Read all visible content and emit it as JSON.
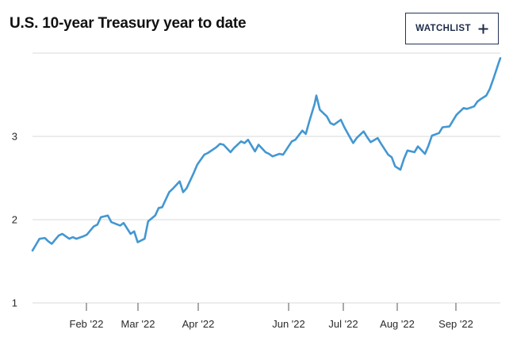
{
  "header": {
    "title": "U.S. 10-year Treasury year to date",
    "watchlist_label": "WATCHLIST",
    "watchlist_icon": "plus-icon"
  },
  "colors": {
    "line": "#4397d2",
    "grid": "#d9d9d9",
    "axis": "#555555",
    "button_border": "#243558",
    "button_text": "#1d2b4a"
  },
  "chart_data": {
    "type": "line",
    "title": "U.S. 10-year Treasury year to date",
    "xlabel": "",
    "ylabel": "",
    "ylim": [
      1,
      4
    ],
    "yticks": [
      1,
      2,
      3
    ],
    "xticks": [
      "Feb '22",
      "Mar '22",
      "Apr '22",
      "Jun '22",
      "Jul '22",
      "Aug '22",
      "Sep '22"
    ],
    "grid": true,
    "legend": "none",
    "series": [
      {
        "name": "",
        "x": [
          "2022-01-03",
          "2022-01-05",
          "2022-01-07",
          "2022-01-10",
          "2022-01-12",
          "2022-01-14",
          "2022-01-18",
          "2022-01-20",
          "2022-01-24",
          "2022-01-26",
          "2022-01-28",
          "2022-02-01",
          "2022-02-03",
          "2022-02-07",
          "2022-02-09",
          "2022-02-11",
          "2022-02-15",
          "2022-02-17",
          "2022-02-22",
          "2022-02-24",
          "2022-02-28",
          "2022-03-02",
          "2022-03-04",
          "2022-03-08",
          "2022-03-10",
          "2022-03-14",
          "2022-03-16",
          "2022-03-18",
          "2022-03-22",
          "2022-03-24",
          "2022-03-28",
          "2022-03-30",
          "2022-04-01",
          "2022-04-05",
          "2022-04-07",
          "2022-04-11",
          "2022-04-13",
          "2022-04-18",
          "2022-04-20",
          "2022-04-22",
          "2022-04-26",
          "2022-04-28",
          "2022-05-02",
          "2022-05-04",
          "2022-05-06",
          "2022-05-10",
          "2022-05-12",
          "2022-05-16",
          "2022-05-18",
          "2022-05-20",
          "2022-05-24",
          "2022-05-26",
          "2022-05-31",
          "2022-06-02",
          "2022-06-06",
          "2022-06-08",
          "2022-06-10",
          "2022-06-13",
          "2022-06-14",
          "2022-06-16",
          "2022-06-20",
          "2022-06-22",
          "2022-06-24",
          "2022-06-28",
          "2022-06-30",
          "2022-07-05",
          "2022-07-07",
          "2022-07-11",
          "2022-07-13",
          "2022-07-15",
          "2022-07-19",
          "2022-07-21",
          "2022-07-25",
          "2022-07-27",
          "2022-07-29",
          "2022-08-01",
          "2022-08-03",
          "2022-08-05",
          "2022-08-09",
          "2022-08-11",
          "2022-08-15",
          "2022-08-17",
          "2022-08-19",
          "2022-08-23",
          "2022-08-25",
          "2022-08-29",
          "2022-08-31",
          "2022-09-02",
          "2022-09-06",
          "2022-09-08",
          "2022-09-12",
          "2022-09-14",
          "2022-09-16",
          "2022-09-19",
          "2022-09-21",
          "2022-09-23",
          "2022-09-26",
          "2022-09-27"
        ],
        "values": [
          1.63,
          1.7,
          1.77,
          1.78,
          1.74,
          1.71,
          1.81,
          1.83,
          1.77,
          1.79,
          1.77,
          1.8,
          1.82,
          1.92,
          1.94,
          2.03,
          2.05,
          1.97,
          1.93,
          1.96,
          1.83,
          1.86,
          1.73,
          1.77,
          1.98,
          2.05,
          2.14,
          2.15,
          2.33,
          2.37,
          2.46,
          2.33,
          2.38,
          2.56,
          2.66,
          2.78,
          2.8,
          2.87,
          2.91,
          2.9,
          2.81,
          2.86,
          2.94,
          2.92,
          2.96,
          2.82,
          2.9,
          2.81,
          2.79,
          2.76,
          2.79,
          2.78,
          2.94,
          2.96,
          3.07,
          3.03,
          3.18,
          3.39,
          3.49,
          3.32,
          3.24,
          3.16,
          3.14,
          3.2,
          3.11,
          2.92,
          2.98,
          3.06,
          2.99,
          2.93,
          2.98,
          2.91,
          2.78,
          2.75,
          2.64,
          2.6,
          2.73,
          2.83,
          2.81,
          2.88,
          2.79,
          2.89,
          3.01,
          3.04,
          3.11,
          3.12,
          3.19,
          3.26,
          3.34,
          3.33,
          3.36,
          3.42,
          3.45,
          3.49,
          3.57,
          3.69,
          3.88,
          3.94
        ]
      }
    ]
  }
}
